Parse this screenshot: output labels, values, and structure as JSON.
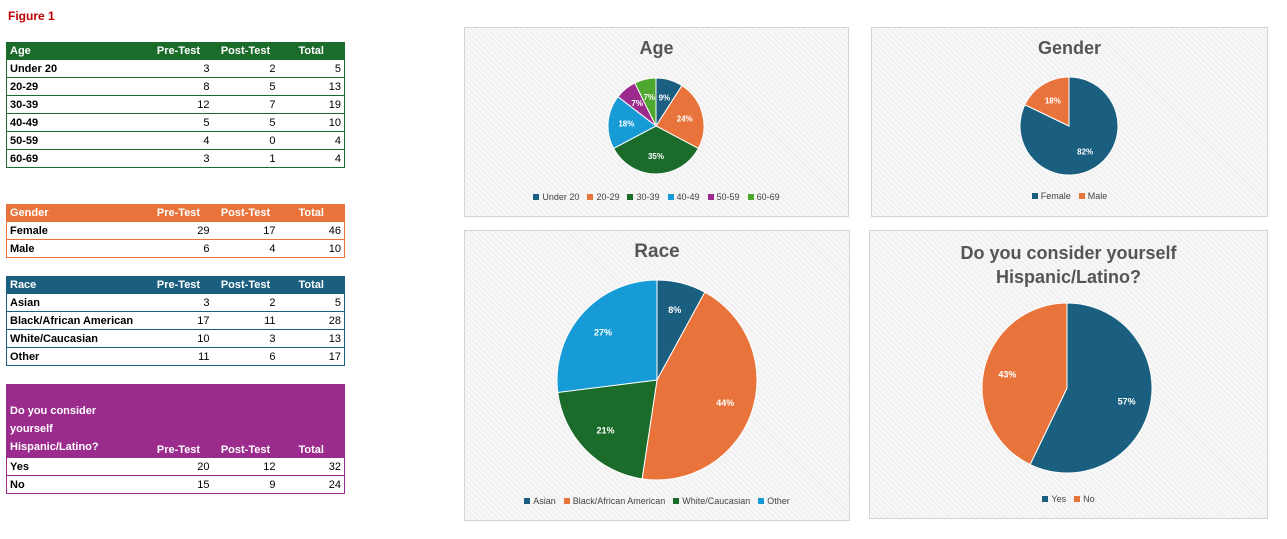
{
  "figure_title": "Figure 1",
  "colors": {
    "dark_blue": "#1a5e80",
    "orange": "#e8743b",
    "dark_green": "#1b6b2a",
    "light_blue": "#179bd6",
    "purple": "#9b2c8e",
    "green": "#4ea72e"
  },
  "tables": {
    "age": {
      "headers": [
        "Age",
        "Pre-Test",
        "Post-Test",
        "Total"
      ],
      "rows": [
        [
          "Under 20",
          "3",
          "2",
          "5"
        ],
        [
          "20-29",
          "8",
          "5",
          "13"
        ],
        [
          "30-39",
          "12",
          "7",
          "19"
        ],
        [
          "40-49",
          "5",
          "5",
          "10"
        ],
        [
          "50-59",
          "4",
          "0",
          "4"
        ],
        [
          "60-69",
          "3",
          "1",
          "4"
        ]
      ]
    },
    "gender": {
      "headers": [
        "Gender",
        "Pre-Test",
        "Post-Test",
        "Total"
      ],
      "rows": [
        [
          "Female",
          "29",
          "17",
          "46"
        ],
        [
          "Male",
          "6",
          "4",
          "10"
        ]
      ]
    },
    "race": {
      "headers": [
        "Race",
        "Pre-Test",
        "Post-Test",
        "Total"
      ],
      "rows": [
        [
          "Asian",
          "3",
          "2",
          "5"
        ],
        [
          "Black/African American",
          "17",
          "11",
          "28"
        ],
        [
          "White/Caucasian",
          "10",
          "3",
          "13"
        ],
        [
          "Other",
          "11",
          "6",
          "17"
        ]
      ]
    },
    "hispanic": {
      "headers": [
        "Do you consider yourself Hispanic/Latino?",
        "Pre-Test",
        "Post-Test",
        "Total"
      ],
      "rows": [
        [
          "Yes",
          "20",
          "12",
          "32"
        ],
        [
          "No",
          "15",
          "9",
          "24"
        ]
      ]
    }
  },
  "chart_data": [
    {
      "type": "pie",
      "title": "Age",
      "categories": [
        "Under 20",
        "20-29",
        "30-39",
        "40-49",
        "50-59",
        "60-69"
      ],
      "values": [
        5,
        13,
        19,
        10,
        4,
        4
      ],
      "labels": [
        "9%",
        "24%",
        "35%",
        "18%",
        "7%",
        "7%"
      ],
      "colors": [
        "#1a5e80",
        "#e8743b",
        "#1b6b2a",
        "#179bd6",
        "#9b2c8e",
        "#4ea72e"
      ],
      "legend": "bottom"
    },
    {
      "type": "pie",
      "title": "Gender",
      "categories": [
        "Female",
        "Male"
      ],
      "values": [
        46,
        10
      ],
      "labels": [
        "82%",
        "18%"
      ],
      "colors": [
        "#1a5e80",
        "#e8743b"
      ],
      "legend": "bottom"
    },
    {
      "type": "pie",
      "title": "Race",
      "categories": [
        "Asian",
        "Black/African American",
        "White/Caucasian",
        "Other"
      ],
      "values": [
        5,
        28,
        13,
        17
      ],
      "labels": [
        "8%",
        "44%",
        "21%",
        "27%"
      ],
      "colors": [
        "#1a5e80",
        "#e8743b",
        "#1b6b2a",
        "#179bd6"
      ],
      "legend": "bottom"
    },
    {
      "type": "pie",
      "title_lines": [
        "Do you consider yourself",
        "Hispanic/Latino?"
      ],
      "categories": [
        "Yes",
        "No"
      ],
      "values": [
        32,
        24
      ],
      "labels": [
        "57%",
        "43%"
      ],
      "colors": [
        "#1a5e80",
        "#e8743b"
      ],
      "legend": "bottom"
    }
  ]
}
